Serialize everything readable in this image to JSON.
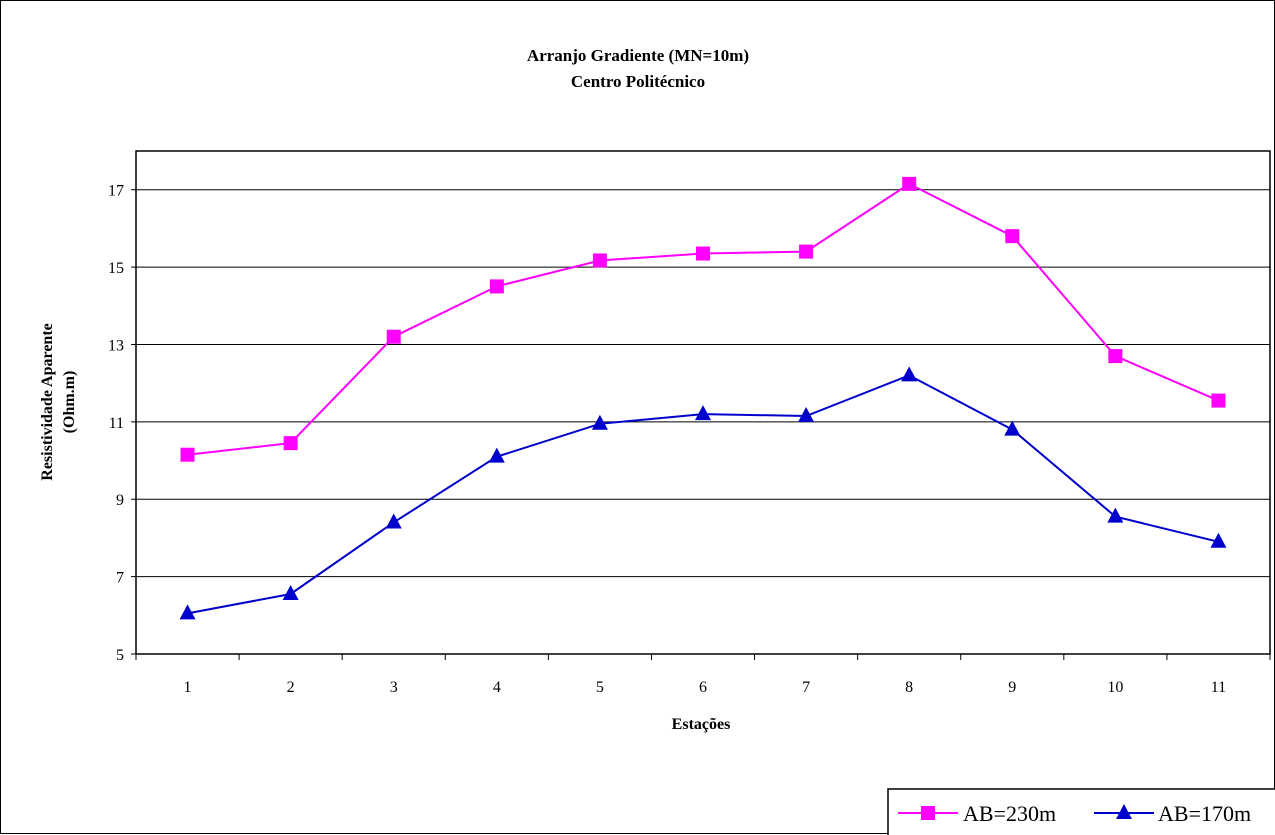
{
  "chart_data": {
    "type": "line",
    "title": "Arranjo Gradiente (MN=10m)",
    "subtitle": "Centro Politécnico",
    "xlabel": "Estações",
    "ylabel": "Resistividade Aparente",
    "ylabel_unit": "(Ohm.m)",
    "categories": [
      "1",
      "2",
      "3",
      "4",
      "5",
      "6",
      "7",
      "8",
      "9",
      "10",
      "11"
    ],
    "ylim": [
      5,
      18
    ],
    "yticks": [
      5,
      7,
      9,
      11,
      13,
      15,
      17
    ],
    "grid": true,
    "legend_position": "bottom-right",
    "series": [
      {
        "name": "AB=230m",
        "color": "#ff00ff",
        "marker": "square",
        "values": [
          10.15,
          10.45,
          13.2,
          14.5,
          15.17,
          15.35,
          15.4,
          17.15,
          15.8,
          12.7,
          11.55
        ]
      },
      {
        "name": "AB=170m",
        "color": "#0000cc",
        "marker": "triangle",
        "values": [
          6.05,
          6.55,
          8.4,
          10.1,
          10.95,
          11.2,
          11.15,
          12.2,
          10.8,
          8.55,
          7.9
        ]
      }
    ]
  }
}
